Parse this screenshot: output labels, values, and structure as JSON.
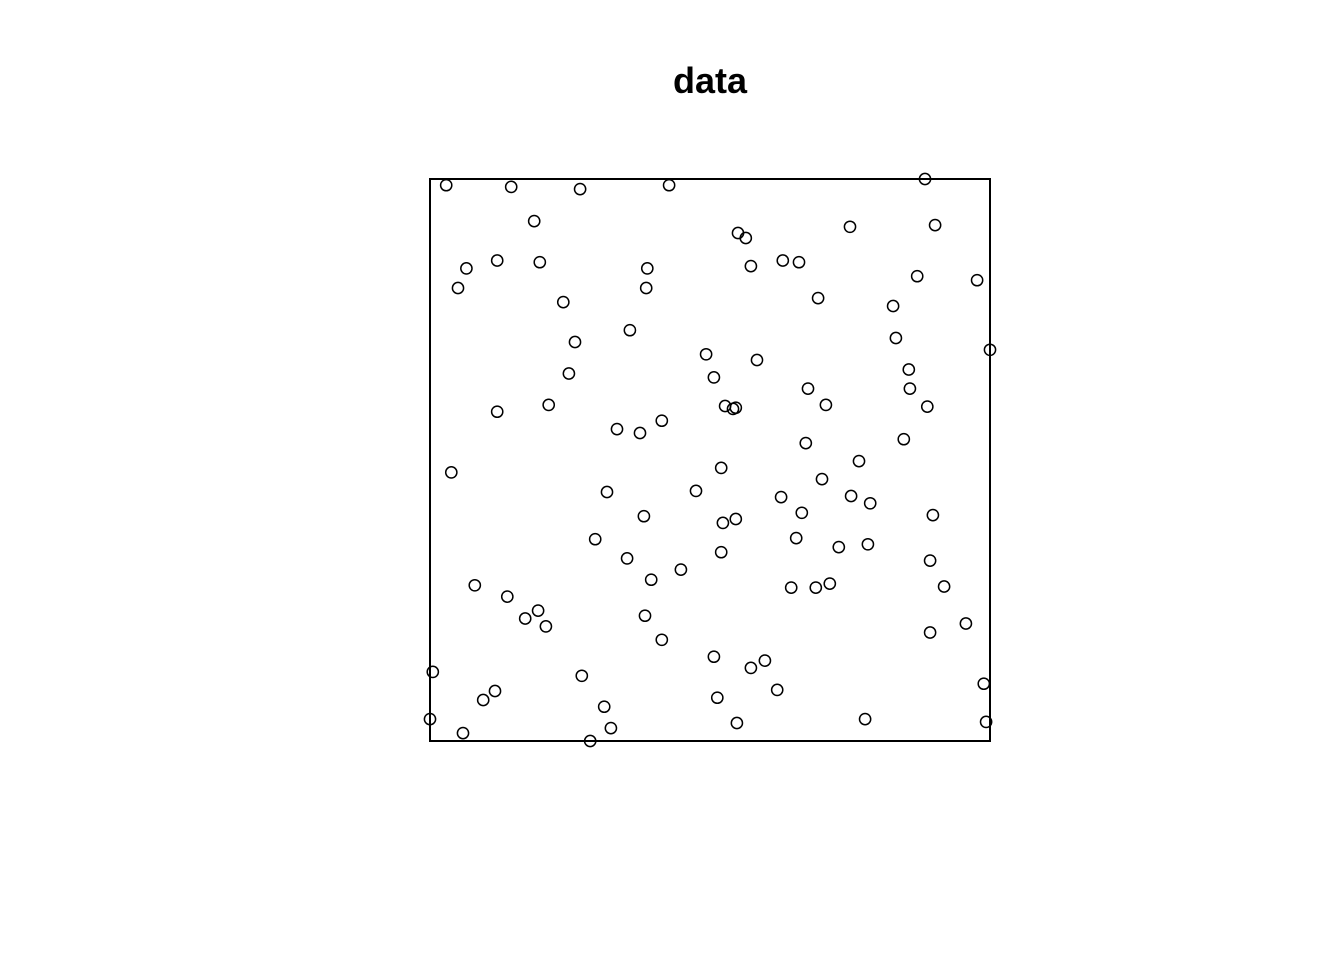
{
  "chart_data": {
    "type": "scatter",
    "title": "data",
    "xlabel": "",
    "ylabel": "",
    "xlim": [
      0,
      1
    ],
    "ylim": [
      0,
      1
    ],
    "window_frame": true,
    "axes_shown": false,
    "grid": false,
    "marker": "open-circle",
    "marker_color": "#000000",
    "points": [
      {
        "x": 0.029,
        "y": 0.989
      },
      {
        "x": 0.145,
        "y": 0.986
      },
      {
        "x": 0.268,
        "y": 0.982
      },
      {
        "x": 0.427,
        "y": 0.989
      },
      {
        "x": 0.884,
        "y": 1.0
      },
      {
        "x": 0.186,
        "y": 0.925
      },
      {
        "x": 0.55,
        "y": 0.904
      },
      {
        "x": 0.564,
        "y": 0.895
      },
      {
        "x": 0.75,
        "y": 0.915
      },
      {
        "x": 0.902,
        "y": 0.918
      },
      {
        "x": 0.12,
        "y": 0.855
      },
      {
        "x": 0.196,
        "y": 0.852
      },
      {
        "x": 0.065,
        "y": 0.841
      },
      {
        "x": 0.388,
        "y": 0.841
      },
      {
        "x": 0.573,
        "y": 0.845
      },
      {
        "x": 0.63,
        "y": 0.855
      },
      {
        "x": 0.659,
        "y": 0.852
      },
      {
        "x": 0.05,
        "y": 0.806
      },
      {
        "x": 0.386,
        "y": 0.806
      },
      {
        "x": 0.977,
        "y": 0.82
      },
      {
        "x": 0.87,
        "y": 0.827
      },
      {
        "x": 0.238,
        "y": 0.781
      },
      {
        "x": 0.693,
        "y": 0.788
      },
      {
        "x": 0.827,
        "y": 0.774
      },
      {
        "x": 0.357,
        "y": 0.731
      },
      {
        "x": 0.259,
        "y": 0.71
      },
      {
        "x": 0.832,
        "y": 0.717
      },
      {
        "x": 1.0,
        "y": 0.696
      },
      {
        "x": 0.493,
        "y": 0.688
      },
      {
        "x": 0.584,
        "y": 0.678
      },
      {
        "x": 0.248,
        "y": 0.654
      },
      {
        "x": 0.507,
        "y": 0.647
      },
      {
        "x": 0.855,
        "y": 0.661
      },
      {
        "x": 0.675,
        "y": 0.627
      },
      {
        "x": 0.212,
        "y": 0.598
      },
      {
        "x": 0.12,
        "y": 0.586
      },
      {
        "x": 0.527,
        "y": 0.596
      },
      {
        "x": 0.541,
        "y": 0.591
      },
      {
        "x": 0.546,
        "y": 0.593
      },
      {
        "x": 0.707,
        "y": 0.598
      },
      {
        "x": 0.857,
        "y": 0.627
      },
      {
        "x": 0.888,
        "y": 0.595
      },
      {
        "x": 0.334,
        "y": 0.555
      },
      {
        "x": 0.375,
        "y": 0.548
      },
      {
        "x": 0.414,
        "y": 0.57
      },
      {
        "x": 0.671,
        "y": 0.53
      },
      {
        "x": 0.846,
        "y": 0.537
      },
      {
        "x": 0.038,
        "y": 0.478
      },
      {
        "x": 0.766,
        "y": 0.498
      },
      {
        "x": 0.52,
        "y": 0.486
      },
      {
        "x": 0.7,
        "y": 0.466
      },
      {
        "x": 0.316,
        "y": 0.443
      },
      {
        "x": 0.475,
        "y": 0.445
      },
      {
        "x": 0.627,
        "y": 0.434
      },
      {
        "x": 0.898,
        "y": 0.402
      },
      {
        "x": 0.752,
        "y": 0.436
      },
      {
        "x": 0.786,
        "y": 0.423
      },
      {
        "x": 0.382,
        "y": 0.4
      },
      {
        "x": 0.523,
        "y": 0.388
      },
      {
        "x": 0.546,
        "y": 0.395
      },
      {
        "x": 0.664,
        "y": 0.406
      },
      {
        "x": 0.295,
        "y": 0.359
      },
      {
        "x": 0.654,
        "y": 0.361
      },
      {
        "x": 0.73,
        "y": 0.345
      },
      {
        "x": 0.782,
        "y": 0.35
      },
      {
        "x": 0.52,
        "y": 0.336
      },
      {
        "x": 0.352,
        "y": 0.325
      },
      {
        "x": 0.893,
        "y": 0.321
      },
      {
        "x": 0.448,
        "y": 0.305
      },
      {
        "x": 0.08,
        "y": 0.277
      },
      {
        "x": 0.395,
        "y": 0.287
      },
      {
        "x": 0.645,
        "y": 0.273
      },
      {
        "x": 0.689,
        "y": 0.273
      },
      {
        "x": 0.714,
        "y": 0.28
      },
      {
        "x": 0.918,
        "y": 0.275
      },
      {
        "x": 0.138,
        "y": 0.257
      },
      {
        "x": 0.193,
        "y": 0.232
      },
      {
        "x": 0.17,
        "y": 0.218
      },
      {
        "x": 0.207,
        "y": 0.204
      },
      {
        "x": 0.384,
        "y": 0.223
      },
      {
        "x": 0.414,
        "y": 0.18
      },
      {
        "x": 0.957,
        "y": 0.209
      },
      {
        "x": 0.893,
        "y": 0.193
      },
      {
        "x": 0.507,
        "y": 0.15
      },
      {
        "x": 0.573,
        "y": 0.13
      },
      {
        "x": 0.598,
        "y": 0.143
      },
      {
        "x": 0.005,
        "y": 0.123
      },
      {
        "x": 0.271,
        "y": 0.116
      },
      {
        "x": 0.116,
        "y": 0.089
      },
      {
        "x": 0.095,
        "y": 0.073
      },
      {
        "x": 0.62,
        "y": 0.091
      },
      {
        "x": 0.513,
        "y": 0.077
      },
      {
        "x": 0.989,
        "y": 0.102
      },
      {
        "x": 0.311,
        "y": 0.061
      },
      {
        "x": 0.323,
        "y": 0.023
      },
      {
        "x": 0.548,
        "y": 0.032
      },
      {
        "x": 0.0,
        "y": 0.039
      },
      {
        "x": 0.777,
        "y": 0.039
      },
      {
        "x": 0.993,
        "y": 0.034
      },
      {
        "x": 0.059,
        "y": 0.014
      },
      {
        "x": 0.286,
        "y": 0.0
      }
    ]
  }
}
